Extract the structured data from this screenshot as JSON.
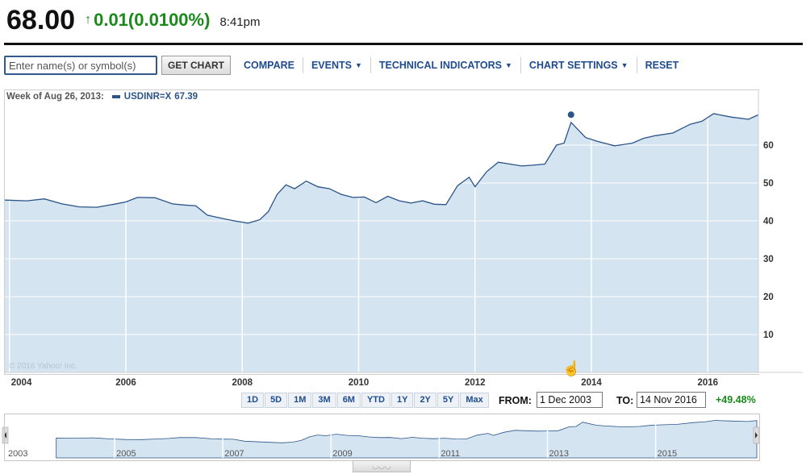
{
  "quote": {
    "price": "68.00",
    "change": "0.01",
    "change_pct": "(0.0100%)",
    "time": "8:41pm",
    "arrow": "↑"
  },
  "toolbar": {
    "search_placeholder": "Enter name(s) or symbol(s)",
    "get_chart": "GET CHART",
    "compare": "COMPARE",
    "events": "EVENTS",
    "technical_indicators": "TECHNICAL INDICATORS",
    "chart_settings": "CHART SETTINGS",
    "reset": "RESET",
    "caret": "▼"
  },
  "legend": {
    "week": "Week of Aug 26, 2013:",
    "series": "USDINR=X",
    "value": "67.39"
  },
  "credit": "© 2016 Yahoo! Inc.",
  "ranges": [
    "1D",
    "5D",
    "1M",
    "3M",
    "6M",
    "YTD",
    "1Y",
    "2Y",
    "5Y",
    "Max"
  ],
  "date_range": {
    "from_label": "FROM:",
    "from": "1 Dec 2003",
    "to_label": "TO:",
    "to": "14 Nov 2016",
    "pct": "+49.48%"
  },
  "grip": "◡◡◡",
  "colors": {
    "line": "#2a5488",
    "fill": "#d4e4f1",
    "positive": "#1a8a1a",
    "accent": "#1f4c8f"
  },
  "chart_data": {
    "type": "area",
    "series": [
      {
        "name": "USDINR=X",
        "x": [
          2003.92,
          2004.3,
          2004.6,
          2004.9,
          2005.2,
          2005.5,
          2005.8,
          2006.0,
          2006.2,
          2006.5,
          2006.8,
          2007.0,
          2007.2,
          2007.4,
          2007.7,
          2007.9,
          2008.1,
          2008.3,
          2008.45,
          2008.6,
          2008.75,
          2008.9,
          2009.1,
          2009.3,
          2009.5,
          2009.7,
          2009.9,
          2010.1,
          2010.3,
          2010.5,
          2010.7,
          2010.9,
          2011.1,
          2011.3,
          2011.5,
          2011.7,
          2011.9,
          2012.0,
          2012.2,
          2012.4,
          2012.6,
          2012.8,
          2013.0,
          2013.2,
          2013.4,
          2013.53,
          2013.65,
          2013.9,
          2014.1,
          2014.4,
          2014.7,
          2014.9,
          2015.1,
          2015.4,
          2015.7,
          2015.9,
          2016.1,
          2016.4,
          2016.7,
          2016.87
        ],
        "y": [
          45.5,
          45.3,
          45.8,
          44.5,
          43.7,
          43.6,
          44.4,
          45.0,
          46.2,
          46.1,
          44.5,
          44.2,
          44.0,
          41.5,
          40.5,
          39.9,
          39.4,
          40.3,
          42.5,
          47.0,
          49.5,
          48.5,
          50.5,
          49.0,
          48.5,
          47.0,
          46.2,
          46.3,
          44.8,
          46.5,
          45.3,
          44.7,
          45.3,
          44.4,
          44.3,
          49.3,
          51.5,
          49.0,
          53.0,
          55.5,
          55.0,
          54.5,
          54.7,
          55.0,
          60.0,
          60.5,
          66.0,
          62.0,
          61.0,
          59.8,
          60.5,
          61.8,
          62.5,
          63.2,
          65.5,
          66.3,
          68.3,
          67.4,
          66.8,
          68.0
        ]
      }
    ],
    "x_ticks": [
      "2004",
      "2006",
      "2008",
      "2010",
      "2012",
      "2014",
      "2016"
    ],
    "y_ticks": [
      "10",
      "20",
      "30",
      "40",
      "50",
      "60"
    ],
    "ylim": [
      0,
      70
    ],
    "marker": {
      "x": 2013.65,
      "y": 67.39
    },
    "navigator_ticks": [
      "2003",
      "2005",
      "2007",
      "2009",
      "2011",
      "2013",
      "2015"
    ],
    "grid": true
  }
}
